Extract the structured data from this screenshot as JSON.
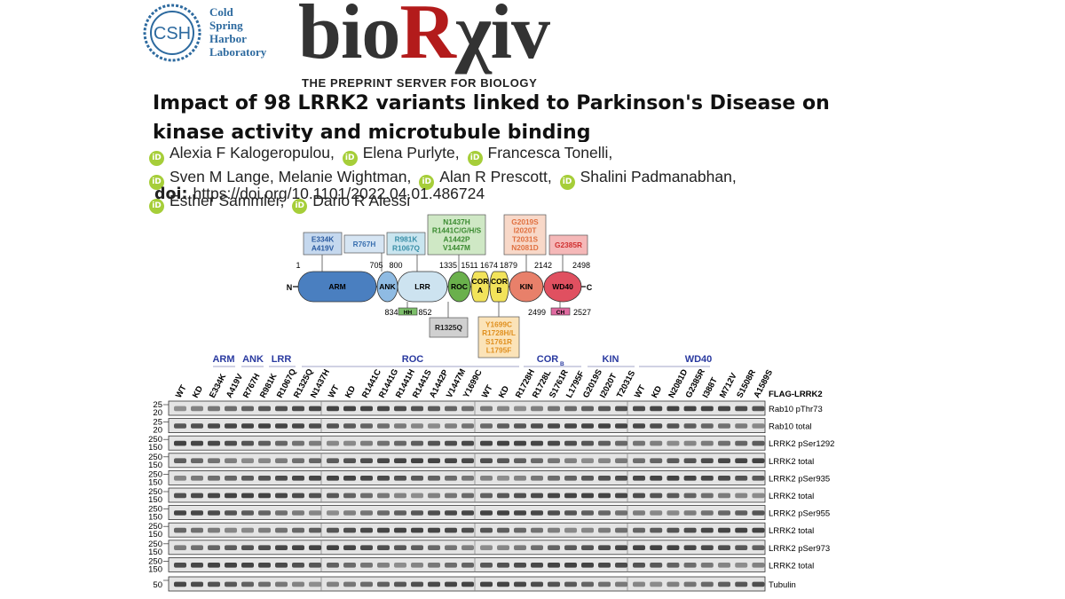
{
  "logo": {
    "badge": "CSH",
    "lab_lines": [
      "Cold",
      "Spring",
      "Harbor",
      "Laboratory"
    ],
    "wordmark": [
      "bio",
      "R",
      "χiv"
    ],
    "tagline": "THE PREPRINT SERVER FOR BIOLOGY"
  },
  "title": "Impact of 98 LRRK2 variants linked to Parkinson's Disease on kinase activity and microtubule binding",
  "orcid_icon": "iD",
  "authors": [
    "Alexia F Kalogeropulou,",
    "Elena Purlyte,",
    "Francesca Tonelli,",
    "Sven M Lange, Melanie Wightman,",
    "Alan R Prescott,",
    "Shalini Padmanabhan,",
    "Esther Sammler,",
    "Dario R Alessi"
  ],
  "doi": {
    "label": "doi:",
    "url": "https://doi.org/10.1101/2022.04.01.486724"
  },
  "figure": {
    "n_terminus": "N",
    "c_terminus": "C",
    "domains": [
      {
        "label": "ARM"
      },
      {
        "label": "ANK"
      },
      {
        "label": "LRR"
      },
      {
        "label": "ROC"
      },
      {
        "label": "COR",
        "sub": "A"
      },
      {
        "label": "COR",
        "sub": "B"
      },
      {
        "label": "KIN"
      },
      {
        "label": "WD40"
      }
    ],
    "positions": [
      "1",
      "705",
      "800",
      "1335",
      "1511",
      "1674",
      "1879",
      "2142",
      "2498"
    ],
    "motifs": [
      {
        "label": "HH",
        "start": "834",
        "end": "852"
      },
      {
        "label": "CH",
        "start": "2499",
        "end": "2527"
      }
    ],
    "variant_boxes": [
      {
        "lines": [
          "E334K",
          "A419V"
        ]
      },
      {
        "lines": [
          "R767H"
        ]
      },
      {
        "lines": [
          "R981K",
          "R1067Q"
        ]
      },
      {
        "lines": [
          "N1437H",
          "R1441C/G/H/S",
          "A1442P",
          "V1447M"
        ]
      },
      {
        "lines": [
          "G2019S",
          "I2020T",
          "T2031S",
          "N2081D"
        ]
      },
      {
        "lines": [
          "G2385R"
        ]
      },
      {
        "lines": [
          "R1325Q"
        ]
      },
      {
        "lines": [
          "Y1699C",
          "R1728H/L",
          "S1761R",
          "L1795F"
        ]
      }
    ],
    "blot": {
      "groups": [
        {
          "label": "ARM"
        },
        {
          "label": "ANK"
        },
        {
          "label": "LRR"
        },
        {
          "label": "ROC"
        },
        {
          "label": "COR",
          "sub": "B"
        },
        {
          "label": "KIN"
        },
        {
          "label": "WD40"
        }
      ],
      "lane_header": "FLAG-LRRK2",
      "panels": [
        {
          "lanes": [
            "WT",
            "KD",
            "E334K",
            "A419V",
            "R767H",
            "R981K",
            "R1067Q",
            "R1325Q",
            "N1437H"
          ]
        },
        {
          "lanes": [
            "WT",
            "KD",
            "R1441C",
            "R1441G",
            "R1441H",
            "R1441S",
            "A1442P",
            "V1447M",
            "Y1699C"
          ]
        },
        {
          "lanes": [
            "WT",
            "KD",
            "R1728H",
            "R1728L",
            "S1761R",
            "L1795F",
            "G2019S",
            "I2020T",
            "T2031S"
          ]
        },
        {
          "lanes": [
            "WT",
            "KD",
            "N2081D",
            "G2385R",
            "I388T",
            "M712V",
            "S1508R",
            "A1589S"
          ]
        }
      ],
      "rows": [
        {
          "label": "Rab10 pThr73",
          "markers": [
            "25",
            "20"
          ]
        },
        {
          "label": "Rab10 total",
          "markers": [
            "25",
            "20"
          ]
        },
        {
          "label": "LRRK2 pSer1292",
          "markers": [
            "250",
            "150"
          ]
        },
        {
          "label": "LRRK2 total",
          "markers": [
            "250",
            "150"
          ]
        },
        {
          "label": "LRRK2 pSer935",
          "markers": [
            "250",
            "150"
          ]
        },
        {
          "label": "LRRK2 total",
          "markers": [
            "250",
            "150"
          ]
        },
        {
          "label": "LRRK2 pSer955",
          "markers": [
            "250",
            "150"
          ]
        },
        {
          "label": "LRRK2 total",
          "markers": [
            "250",
            "150"
          ]
        },
        {
          "label": "LRRK2 pSer973",
          "markers": [
            "250",
            "150"
          ]
        },
        {
          "label": "LRRK2 total",
          "markers": [
            "250",
            "150"
          ]
        },
        {
          "label": "Tubulin",
          "markers": [
            "50"
          ]
        }
      ]
    }
  }
}
